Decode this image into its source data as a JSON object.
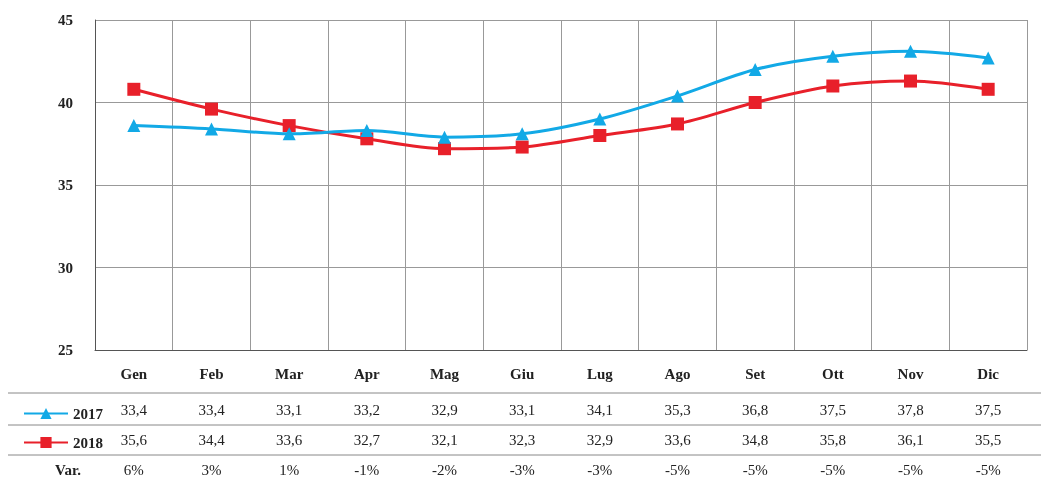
{
  "chart_data": {
    "type": "line",
    "categories": [
      "Gen",
      "Feb",
      "Mar",
      "Apr",
      "Mag",
      "Giu",
      "Lug",
      "Ago",
      "Set",
      "Ott",
      "Nov",
      "Dic"
    ],
    "series": [
      {
        "name": "2017",
        "color": "#12a9e6",
        "marker": "triangle",
        "values": [
          38.6,
          38.4,
          38.1,
          38.3,
          37.9,
          38.1,
          39.0,
          40.4,
          42.0,
          42.8,
          43.1,
          42.7
        ]
      },
      {
        "name": "2018",
        "color": "#e8202a",
        "marker": "square",
        "values": [
          40.8,
          39.6,
          38.6,
          37.8,
          37.2,
          37.3,
          38.0,
          38.7,
          40.0,
          41.0,
          41.3,
          40.8
        ]
      }
    ],
    "ylim": [
      25,
      45
    ],
    "yticks": [
      25,
      30,
      35,
      40,
      45
    ],
    "grid": true,
    "legend": "bottom left",
    "line_style": "solid",
    "annotations": [
      "33,4",
      "33,4",
      "33,1",
      "33,2",
      "32,9",
      "33,1",
      "34,1",
      "35,3",
      "36,8",
      "37,5",
      "37,8",
      "37,5",
      "35,6",
      "34,4",
      "33,6",
      "32,7",
      "32,1",
      "32,3",
      "32,9",
      "33,6",
      "34,8",
      "35,8",
      "36,1",
      "35,5",
      "Var.",
      "6%",
      "3%",
      "1%",
      "-1%",
      "-2%",
      "-3%",
      "-3%",
      "-5%",
      "-5%",
      "-5%",
      "-5%",
      "-5%"
    ]
  }
}
